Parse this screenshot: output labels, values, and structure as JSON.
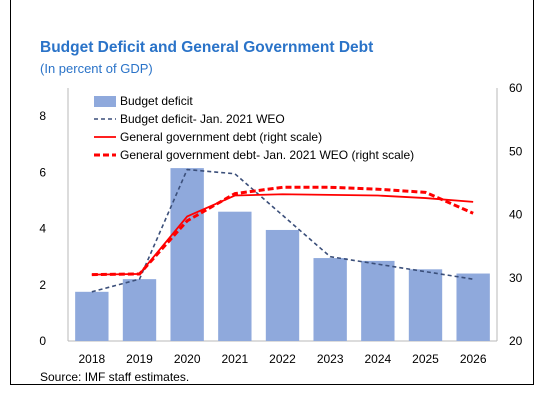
{
  "chart_data": {
    "type": "bar",
    "title": "Budget Deficit and General Government Debt",
    "subtitle": "(In percent of GDP)",
    "categories": [
      "2018",
      "2019",
      "2020",
      "2021",
      "2022",
      "2023",
      "2024",
      "2025",
      "2026"
    ],
    "left_axis": {
      "ylim": [
        0,
        9
      ],
      "ticks": [
        0,
        2,
        4,
        6,
        8
      ]
    },
    "right_axis": {
      "ylim": [
        20,
        60
      ],
      "ticks": [
        20,
        30,
        40,
        50,
        60
      ]
    },
    "series": [
      {
        "name": "Budget deficit",
        "kind": "bar",
        "axis": "left",
        "color": "#8fa9dc",
        "values": [
          1.75,
          2.2,
          6.15,
          4.6,
          3.95,
          2.95,
          2.85,
          2.55,
          2.4
        ]
      },
      {
        "name": "Budget deficit- Jan. 2021 WEO",
        "kind": "line",
        "style": "dashed",
        "axis": "left",
        "color": "#3b4f7a",
        "values": [
          1.75,
          2.2,
          6.1,
          5.95,
          null,
          3.0,
          null,
          null,
          2.2
        ]
      },
      {
        "name": "General government debt (right scale)",
        "kind": "line",
        "style": "solid",
        "axis": "right",
        "color": "#ff0000",
        "values": [
          30.5,
          30.6,
          39.7,
          43.0,
          43.2,
          43.1,
          43.0,
          42.6,
          42.0
        ]
      },
      {
        "name": "General government debt- Jan. 2021 WEO (right scale)",
        "kind": "line",
        "style": "dashed",
        "axis": "right",
        "color": "#ff0000",
        "values": [
          30.5,
          30.6,
          39.0,
          43.3,
          44.3,
          44.3,
          44.0,
          43.5,
          40.2
        ]
      }
    ],
    "legend_position": "top-left",
    "grid": false,
    "source": "Source: IMF staff estimates."
  }
}
